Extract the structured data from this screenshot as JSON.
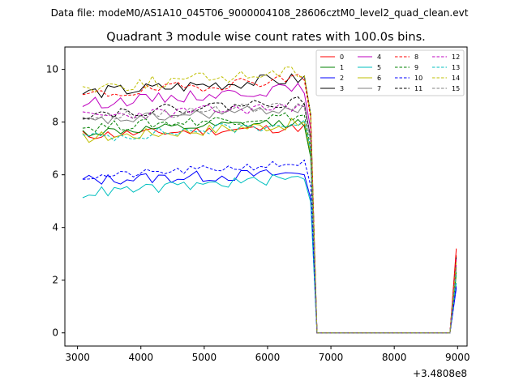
{
  "suptitle": "Data file: modeM0/AS1A10_045T06_9000004108_28606cztM0_level2_quad_clean.evt",
  "chart_data": {
    "type": "line",
    "title": "Quadrant 3 module wise count rates with 100.0s bins.",
    "xlabel": "",
    "ylabel": "",
    "x_offset_label": "+3.4808e8",
    "xlim": [
      2800,
      9150
    ],
    "ylim": [
      -0.5,
      10.85
    ],
    "xticks": [
      3000,
      4000,
      5000,
      6000,
      7000,
      8000,
      9000
    ],
    "xtick_labels": [
      "3000",
      "4000",
      "5000",
      "6000",
      "7000",
      "8000",
      "9000"
    ],
    "yticks": [
      0,
      2,
      4,
      6,
      8,
      10
    ],
    "ytick_labels": [
      "0",
      "2",
      "4",
      "6",
      "8",
      "10"
    ],
    "legend_position": "top-right",
    "legend_ncol": 4,
    "x_start": 3080,
    "x_step": 100,
    "n_active": 36,
    "drop_index": 37,
    "n_zero": 21,
    "series": [
      {
        "name": "0",
        "color": "#ff0000",
        "dash": false,
        "level": 7.5,
        "slope": 0.3,
        "noise": 0.18,
        "tail": 3.2,
        "seed": 11
      },
      {
        "name": "1",
        "color": "#008000",
        "dash": false,
        "level": 7.6,
        "slope": 0.4,
        "noise": 0.18,
        "tail": 2.2,
        "seed": 12
      },
      {
        "name": "2",
        "color": "#0000ff",
        "dash": false,
        "level": 5.8,
        "slope": 0.25,
        "noise": 0.22,
        "tail": 1.7,
        "seed": 13
      },
      {
        "name": "3",
        "color": "#000000",
        "dash": false,
        "level": 9.1,
        "slope": 0.55,
        "noise": 0.25,
        "tail": 2.9,
        "seed": 14
      },
      {
        "name": "4",
        "color": "#bf00bf",
        "dash": false,
        "level": 8.7,
        "slope": 0.6,
        "noise": 0.22,
        "tail": 2.8,
        "seed": 15
      },
      {
        "name": "5",
        "color": "#00bfbf",
        "dash": false,
        "level": 5.3,
        "slope": 0.6,
        "noise": 0.2,
        "tail": 1.9,
        "seed": 16
      },
      {
        "name": "6",
        "color": "#bfbf00",
        "dash": false,
        "level": 7.4,
        "slope": 0.55,
        "noise": 0.22,
        "tail": 2.3,
        "seed": 17
      },
      {
        "name": "7",
        "color": "#808080",
        "dash": false,
        "level": 8.0,
        "slope": 0.55,
        "noise": 0.2,
        "tail": 2.5,
        "seed": 18
      },
      {
        "name": "8",
        "color": "#ff0000",
        "dash": true,
        "level": 9.0,
        "slope": 0.7,
        "noise": 0.22,
        "tail": 3.0,
        "seed": 19
      },
      {
        "name": "9",
        "color": "#008000",
        "dash": true,
        "level": 7.8,
        "slope": 0.45,
        "noise": 0.2,
        "tail": 2.4,
        "seed": 20
      },
      {
        "name": "10",
        "color": "#0000ff",
        "dash": true,
        "level": 5.9,
        "slope": 0.55,
        "noise": 0.15,
        "tail": 1.8,
        "seed": 21
      },
      {
        "name": "11",
        "color": "#000000",
        "dash": true,
        "level": 8.3,
        "slope": 0.5,
        "noise": 0.2,
        "tail": 2.6,
        "seed": 22
      },
      {
        "name": "12",
        "color": "#bf00bf",
        "dash": true,
        "level": 8.2,
        "slope": 0.4,
        "noise": 0.22,
        "tail": 2.6,
        "seed": 23
      },
      {
        "name": "13",
        "color": "#00bfbf",
        "dash": true,
        "level": 7.4,
        "slope": 0.55,
        "noise": 0.22,
        "tail": 2.3,
        "seed": 24
      },
      {
        "name": "14",
        "color": "#bfbf00",
        "dash": true,
        "level": 9.3,
        "slope": 0.65,
        "noise": 0.25,
        "tail": 2.7,
        "seed": 25
      },
      {
        "name": "15",
        "color": "#808080",
        "dash": true,
        "level": 8.2,
        "slope": 0.4,
        "noise": 0.2,
        "tail": 2.5,
        "seed": 26
      }
    ]
  }
}
